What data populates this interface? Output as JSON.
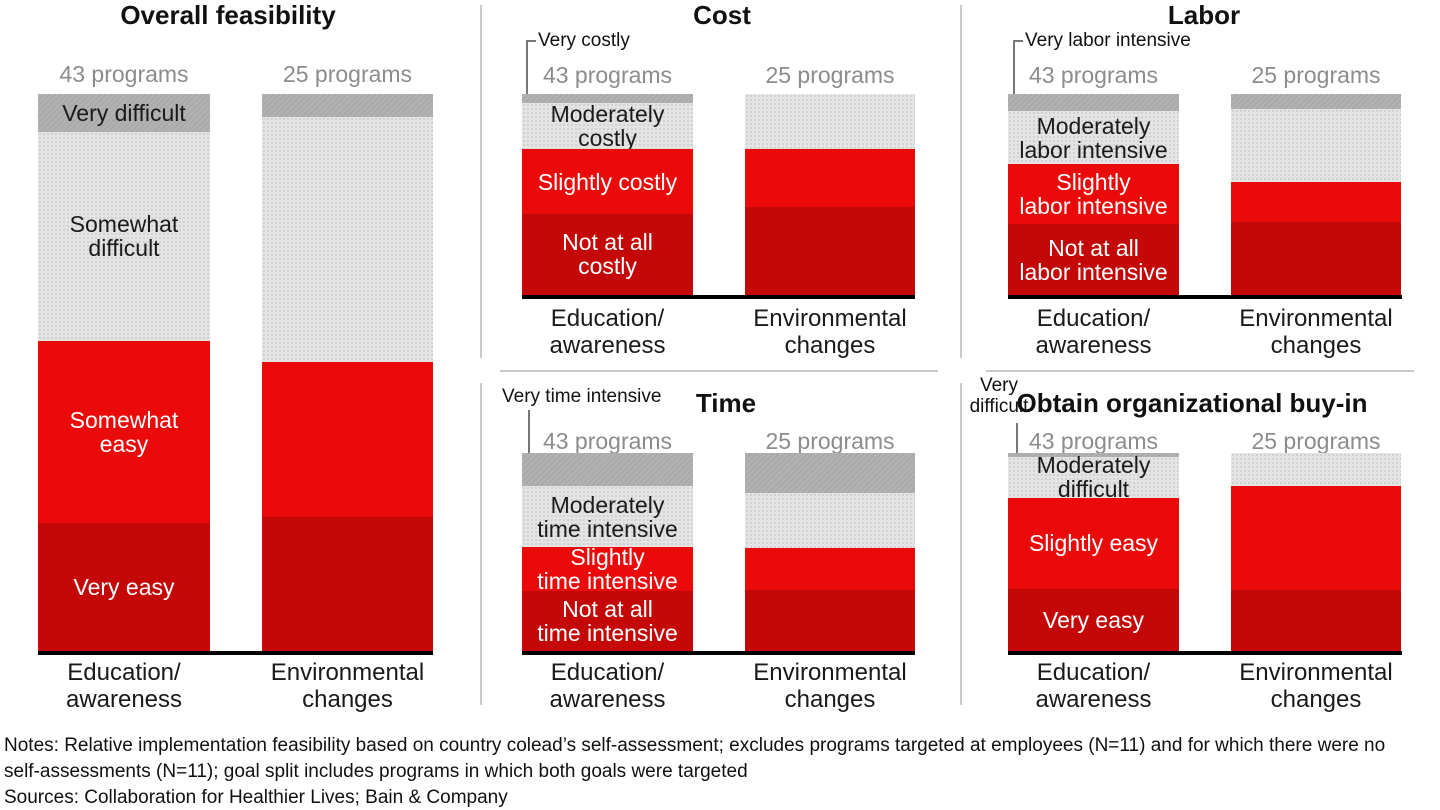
{
  "colors": {
    "bright_red": "#eb0a0a",
    "dark_red": "#c40808",
    "light_gray": "#e4e4e4",
    "dark_gray": "#b1b1b1",
    "header_gray": "#8c8c8c",
    "axis": "#000000",
    "separator": "#c9c9c9"
  },
  "notes": {
    "line1": "Notes: Relative implementation feasibility based on country colead’s self-assessment; excludes programs targeted at employees (N=11) and for which there were no",
    "line2": "self-assessments (N=11); goal split includes programs in which both goals were targeted",
    "line3": "Sources: Collaboration for Healthier Lives; Bain & Company"
  },
  "chart_data": [
    {
      "key": "overall",
      "type": "bar",
      "stacked": true,
      "title": "Overall feasibility",
      "unit": "% of programs (estimated from bar heights)",
      "legend_position": "labels inside left bar",
      "callout": null,
      "bars": [
        {
          "category": "Education/awareness",
          "category_lines": [
            "Education/",
            "awareness"
          ],
          "header": "43 programs",
          "segments": [
            {
              "name": "Very difficult",
              "pct": 6.8,
              "fill": "dark_gray",
              "label_lines": [
                "Very difficult"
              ],
              "label_color": "#1a1a1a"
            },
            {
              "name": "Somewhat difficult",
              "pct": 37.5,
              "fill": "light_gray",
              "label_lines": [
                "Somewhat",
                "difficult"
              ],
              "label_color": "#1a1a1a"
            },
            {
              "name": "Somewhat easy",
              "pct": 32.7,
              "fill": "bright_red",
              "label_lines": [
                "Somewhat",
                "easy"
              ],
              "label_color": "#ffffff"
            },
            {
              "name": "Very easy",
              "pct": 23.0,
              "fill": "dark_red",
              "label_lines": [
                "Very easy"
              ],
              "label_color": "#ffffff"
            }
          ]
        },
        {
          "category": "Environmental changes",
          "category_lines": [
            "Environmental",
            "changes"
          ],
          "header": "25 programs",
          "segments": [
            {
              "name": "Very difficult",
              "pct": 4.1,
              "fill": "dark_gray"
            },
            {
              "name": "Somewhat difficult",
              "pct": 44.0,
              "fill": "light_gray"
            },
            {
              "name": "Somewhat easy",
              "pct": 27.8,
              "fill": "bright_red"
            },
            {
              "name": "Very easy",
              "pct": 24.1,
              "fill": "dark_red"
            }
          ]
        }
      ]
    },
    {
      "key": "cost",
      "type": "bar",
      "stacked": true,
      "title": "Cost",
      "unit": "% of programs (estimated from bar heights)",
      "legend_position": "labels inside left bar",
      "callout": {
        "style": "bracket",
        "text_lines": [
          "Very costly"
        ]
      },
      "bars": [
        {
          "category": "Education/awareness",
          "category_lines": [
            "Education/",
            "awareness"
          ],
          "header": "43 programs",
          "segments": [
            {
              "name": "Very costly",
              "pct": 4.5,
              "fill": "dark_gray"
            },
            {
              "name": "Moderately costly",
              "pct": 22.9,
              "fill": "light_gray",
              "label_lines": [
                "Moderately",
                "costly"
              ],
              "label_color": "#1a1a1a"
            },
            {
              "name": "Slightly costly",
              "pct": 32.3,
              "fill": "bright_red",
              "label_lines": [
                "Slightly costly"
              ],
              "label_color": "#ffffff"
            },
            {
              "name": "Not at all costly",
              "pct": 40.3,
              "fill": "dark_red",
              "label_lines": [
                "Not at all",
                "costly"
              ],
              "label_color": "#ffffff"
            }
          ]
        },
        {
          "category": "Environmental changes",
          "category_lines": [
            "Environmental",
            "changes"
          ],
          "header": "25 programs",
          "segments": [
            {
              "name": "Very costly",
              "pct": 0,
              "fill": "dark_gray"
            },
            {
              "name": "Moderately costly",
              "pct": 27.4,
              "fill": "light_gray"
            },
            {
              "name": "Slightly costly",
              "pct": 28.9,
              "fill": "bright_red"
            },
            {
              "name": "Not at all costly",
              "pct": 43.7,
              "fill": "dark_red"
            }
          ]
        }
      ]
    },
    {
      "key": "labor",
      "type": "bar",
      "stacked": true,
      "title": "Labor",
      "unit": "% of programs (estimated from bar heights)",
      "legend_position": "labels inside left bar",
      "callout": {
        "style": "bracket",
        "text_lines": [
          "Very labor intensive"
        ]
      },
      "bars": [
        {
          "category": "Education/awareness",
          "category_lines": [
            "Education/",
            "awareness"
          ],
          "header": "43 programs",
          "segments": [
            {
              "name": "Very labor intensive",
              "pct": 8.5,
              "fill": "dark_gray"
            },
            {
              "name": "Moderately labor intensive",
              "pct": 26.4,
              "fill": "light_gray",
              "label_lines": [
                "Moderately",
                "labor intensive"
              ],
              "label_color": "#1a1a1a"
            },
            {
              "name": "Slightly labor intensive",
              "pct": 29.9,
              "fill": "bright_red",
              "label_lines": [
                "Slightly",
                "labor intensive"
              ],
              "label_color": "#ffffff"
            },
            {
              "name": "Not at all labor intensive",
              "pct": 35.2,
              "fill": "dark_red",
              "label_lines": [
                "Not at all",
                "labor intensive"
              ],
              "label_color": "#ffffff"
            }
          ]
        },
        {
          "category": "Environmental changes",
          "category_lines": [
            "Environmental",
            "changes"
          ],
          "header": "25 programs",
          "segments": [
            {
              "name": "Very labor intensive",
              "pct": 7.5,
              "fill": "dark_gray"
            },
            {
              "name": "Moderately labor intensive",
              "pct": 36.2,
              "fill": "light_gray"
            },
            {
              "name": "Slightly labor intensive",
              "pct": 19.8,
              "fill": "bright_red"
            },
            {
              "name": "Not at all labor intensive",
              "pct": 36.5,
              "fill": "dark_red"
            }
          ]
        }
      ]
    },
    {
      "key": "time",
      "type": "bar",
      "stacked": true,
      "title": "Time",
      "unit": "% of programs (estimated from bar heights)",
      "legend_position": "labels inside left bar",
      "callout": {
        "style": "drop",
        "text_lines": [
          "Very time intensive"
        ]
      },
      "bars": [
        {
          "category": "Education/awareness",
          "category_lines": [
            "Education/",
            "awareness"
          ],
          "header": "43 programs",
          "segments": [
            {
              "name": "Very time intensive",
              "pct": 16.7,
              "fill": "dark_gray"
            },
            {
              "name": "Moderately time intensive",
              "pct": 30.8,
              "fill": "light_gray",
              "label_lines": [
                "Moderately",
                "time intensive"
              ],
              "label_color": "#1a1a1a"
            },
            {
              "name": "Slightly time intensive",
              "pct": 22.2,
              "fill": "bright_red",
              "label_lines": [
                "Slightly",
                "time intensive"
              ],
              "label_color": "#ffffff"
            },
            {
              "name": "Not at all time intensive",
              "pct": 30.3,
              "fill": "dark_red",
              "label_lines": [
                "Not at all",
                "time intensive"
              ],
              "label_color": "#ffffff"
            }
          ]
        },
        {
          "category": "Environmental changes",
          "category_lines": [
            "Environmental",
            "changes"
          ],
          "header": "25 programs",
          "segments": [
            {
              "name": "Very time intensive",
              "pct": 20.2,
              "fill": "dark_gray"
            },
            {
              "name": "Moderately time intensive",
              "pct": 27.8,
              "fill": "light_gray"
            },
            {
              "name": "Slightly time intensive",
              "pct": 21.2,
              "fill": "bright_red"
            },
            {
              "name": "Not at all time intensive",
              "pct": 30.8,
              "fill": "dark_red"
            }
          ]
        }
      ]
    },
    {
      "key": "buyin",
      "type": "bar",
      "stacked": true,
      "title": "Obtain organizational buy-in",
      "unit": "% of programs (estimated from bar heights)",
      "legend_position": "labels inside left bar",
      "callout": {
        "style": "drop-centered",
        "text_lines": [
          "Very",
          "difficult"
        ]
      },
      "bars": [
        {
          "category": "Education/awareness",
          "category_lines": [
            "Education/",
            "awareness"
          ],
          "header": "43 programs",
          "segments": [
            {
              "name": "Very difficult",
              "pct": 2.0,
              "fill": "dark_gray"
            },
            {
              "name": "Moderately difficult",
              "pct": 20.7,
              "fill": "light_gray",
              "label_lines": [
                "Moderately",
                "difficult"
              ],
              "label_color": "#1a1a1a"
            },
            {
              "name": "Slightly easy",
              "pct": 46.0,
              "fill": "bright_red",
              "label_lines": [
                "Slightly easy"
              ],
              "label_color": "#ffffff"
            },
            {
              "name": "Very easy",
              "pct": 31.3,
              "fill": "dark_red",
              "label_lines": [
                "Very easy"
              ],
              "label_color": "#ffffff"
            }
          ]
        },
        {
          "category": "Environmental changes",
          "category_lines": [
            "Environmental",
            "changes"
          ],
          "header": "25 programs",
          "segments": [
            {
              "name": "Very difficult",
              "pct": 0,
              "fill": "dark_gray"
            },
            {
              "name": "Moderately difficult",
              "pct": 16.7,
              "fill": "light_gray"
            },
            {
              "name": "Slightly easy",
              "pct": 52.5,
              "fill": "bright_red"
            },
            {
              "name": "Very easy",
              "pct": 30.8,
              "fill": "dark_red"
            }
          ]
        }
      ]
    }
  ]
}
